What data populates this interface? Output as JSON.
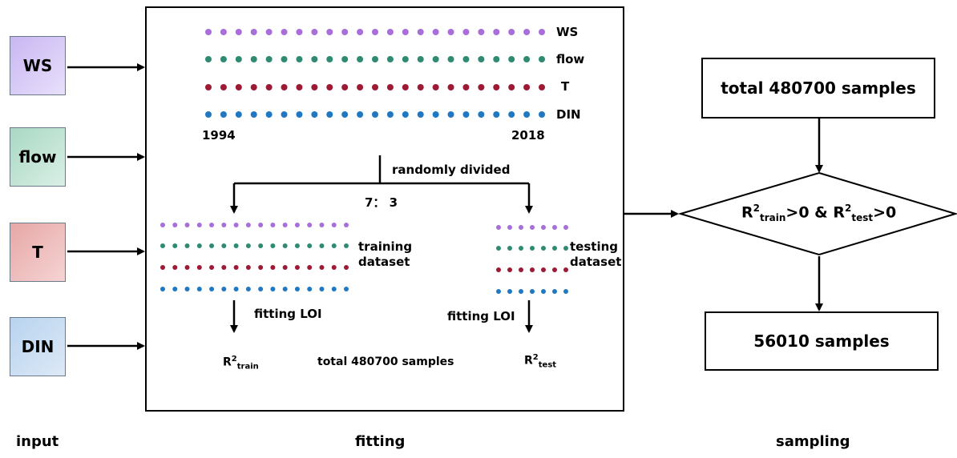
{
  "input": {
    "caption": "input",
    "variables": [
      {
        "label": "WS",
        "fill": "#c9b6f2"
      },
      {
        "label": "flow",
        "fill": "#a9d8c4"
      },
      {
        "label": "T",
        "fill": "#e6a7a6"
      },
      {
        "label": "DIN",
        "fill": "#b8d3ee"
      }
    ]
  },
  "fitting": {
    "caption": "fitting",
    "series": [
      {
        "label": "WS",
        "color": "#a86fdb"
      },
      {
        "label": "flow",
        "color": "#2e8b72"
      },
      {
        "label": "T",
        "color": "#9e1a34"
      },
      {
        "label": "DIN",
        "color": "#1f78c1"
      }
    ],
    "year_start": "1994",
    "year_end": "2018",
    "split_label": "randomly divided",
    "ratio_label": "7： 3",
    "training_label_1": "training",
    "training_label_2": "dataset",
    "testing_label_1": "testing",
    "testing_label_2": "dataset",
    "fit_train_label": "fitting LOI",
    "fit_test_label": "fitting LOI",
    "r2_train_base": "R",
    "r2_train_sup": "2",
    "r2_train_sub": "train",
    "r2_test_base": "R",
    "r2_test_sup": "2",
    "r2_test_sub": "test",
    "total_label": "total 480700 samples"
  },
  "sampling": {
    "caption": "sampling",
    "total_box": "total 480700 samples",
    "condition": {
      "r": "R",
      "sup": "2",
      "sub_train": "train",
      "mid": ">0 & ",
      "sub_test": "test",
      "end": ">0"
    },
    "result_box": "56010 samples"
  }
}
